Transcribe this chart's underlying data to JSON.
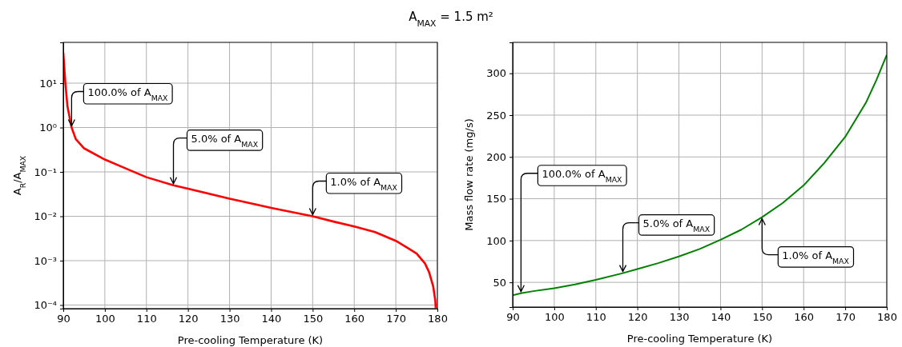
{
  "chart_data": [
    {
      "type": "line",
      "title": "A$_{MAX}$ = 1.5 m²",
      "xlabel": "Pre-cooling Temperature (K)",
      "ylabel": "A$_{R}$/A$_{MAX}$",
      "log": true,
      "grid": true,
      "color": "#ff0000",
      "x": [
        90,
        90.5,
        91,
        92,
        93,
        95,
        100,
        105,
        110,
        116.5,
        120,
        130,
        140,
        150,
        155,
        160,
        165,
        170,
        173,
        175,
        177,
        178,
        179,
        179.5,
        179.6
      ],
      "values": [
        48,
        10,
        3.0,
        1.0,
        0.55,
        0.34,
        0.19,
        0.12,
        0.076,
        0.05,
        0.042,
        0.025,
        0.0155,
        0.01,
        0.0076,
        0.0059,
        0.0044,
        0.0028,
        0.0019,
        0.00145,
        0.00087,
        0.00055,
        0.00026,
        0.000126,
        8.5e-05
      ],
      "xlim": [
        90,
        180
      ],
      "xticks": [
        90,
        100,
        110,
        120,
        130,
        140,
        150,
        160,
        170,
        180
      ],
      "ylim": [
        8.3e-05,
        83
      ],
      "yticks": [
        {
          "value": 0.0001,
          "label": "10⁻⁴"
        },
        {
          "value": 0.001,
          "label": "10⁻³"
        },
        {
          "value": 0.01,
          "label": "10⁻²"
        },
        {
          "value": 0.1,
          "label": "10⁻¹"
        },
        {
          "value": 1,
          "label": "10⁰"
        },
        {
          "value": 10,
          "label": "10¹"
        }
      ],
      "annotations": [
        {
          "text": "100.0% of A$_{MAX}$",
          "x": 92,
          "y": 1.0
        },
        {
          "text": "5.0% of A$_{MAX}$",
          "x": 116.5,
          "y": 0.05
        },
        {
          "text": "1.0% of A$_{MAX}$",
          "x": 150,
          "y": 0.01
        }
      ]
    },
    {
      "type": "line",
      "xlabel": "Pre-cooling Temperature (K)",
      "ylabel": "Mass flow rate (mg/s)",
      "grid": true,
      "color": "#008000",
      "x": [
        90,
        92,
        95,
        100,
        105,
        110,
        116.5,
        120,
        125,
        130,
        135,
        140,
        145,
        150,
        155,
        160,
        165,
        170,
        175,
        177.5,
        180
      ],
      "values": [
        34.6,
        37,
        39.5,
        43,
        47.5,
        53,
        61,
        66,
        73,
        81,
        90,
        101,
        113,
        128,
        145,
        166,
        193,
        224,
        265,
        292,
        322
      ],
      "xlim": [
        90,
        180
      ],
      "xticks": [
        90,
        100,
        110,
        120,
        130,
        140,
        150,
        160,
        170,
        180
      ],
      "ylim": [
        20.5,
        337
      ],
      "yticks": [
        50,
        100,
        150,
        200,
        250,
        300
      ],
      "annotations": [
        {
          "text": "100.0% of A$_{MAX}$",
          "x": 92,
          "y": 37
        },
        {
          "text": "5.0% of A$_{MAX}$",
          "x": 116.5,
          "y": 61
        },
        {
          "text": "1.0% of A$_{MAX}$",
          "x": 150,
          "y": 128
        }
      ]
    }
  ]
}
